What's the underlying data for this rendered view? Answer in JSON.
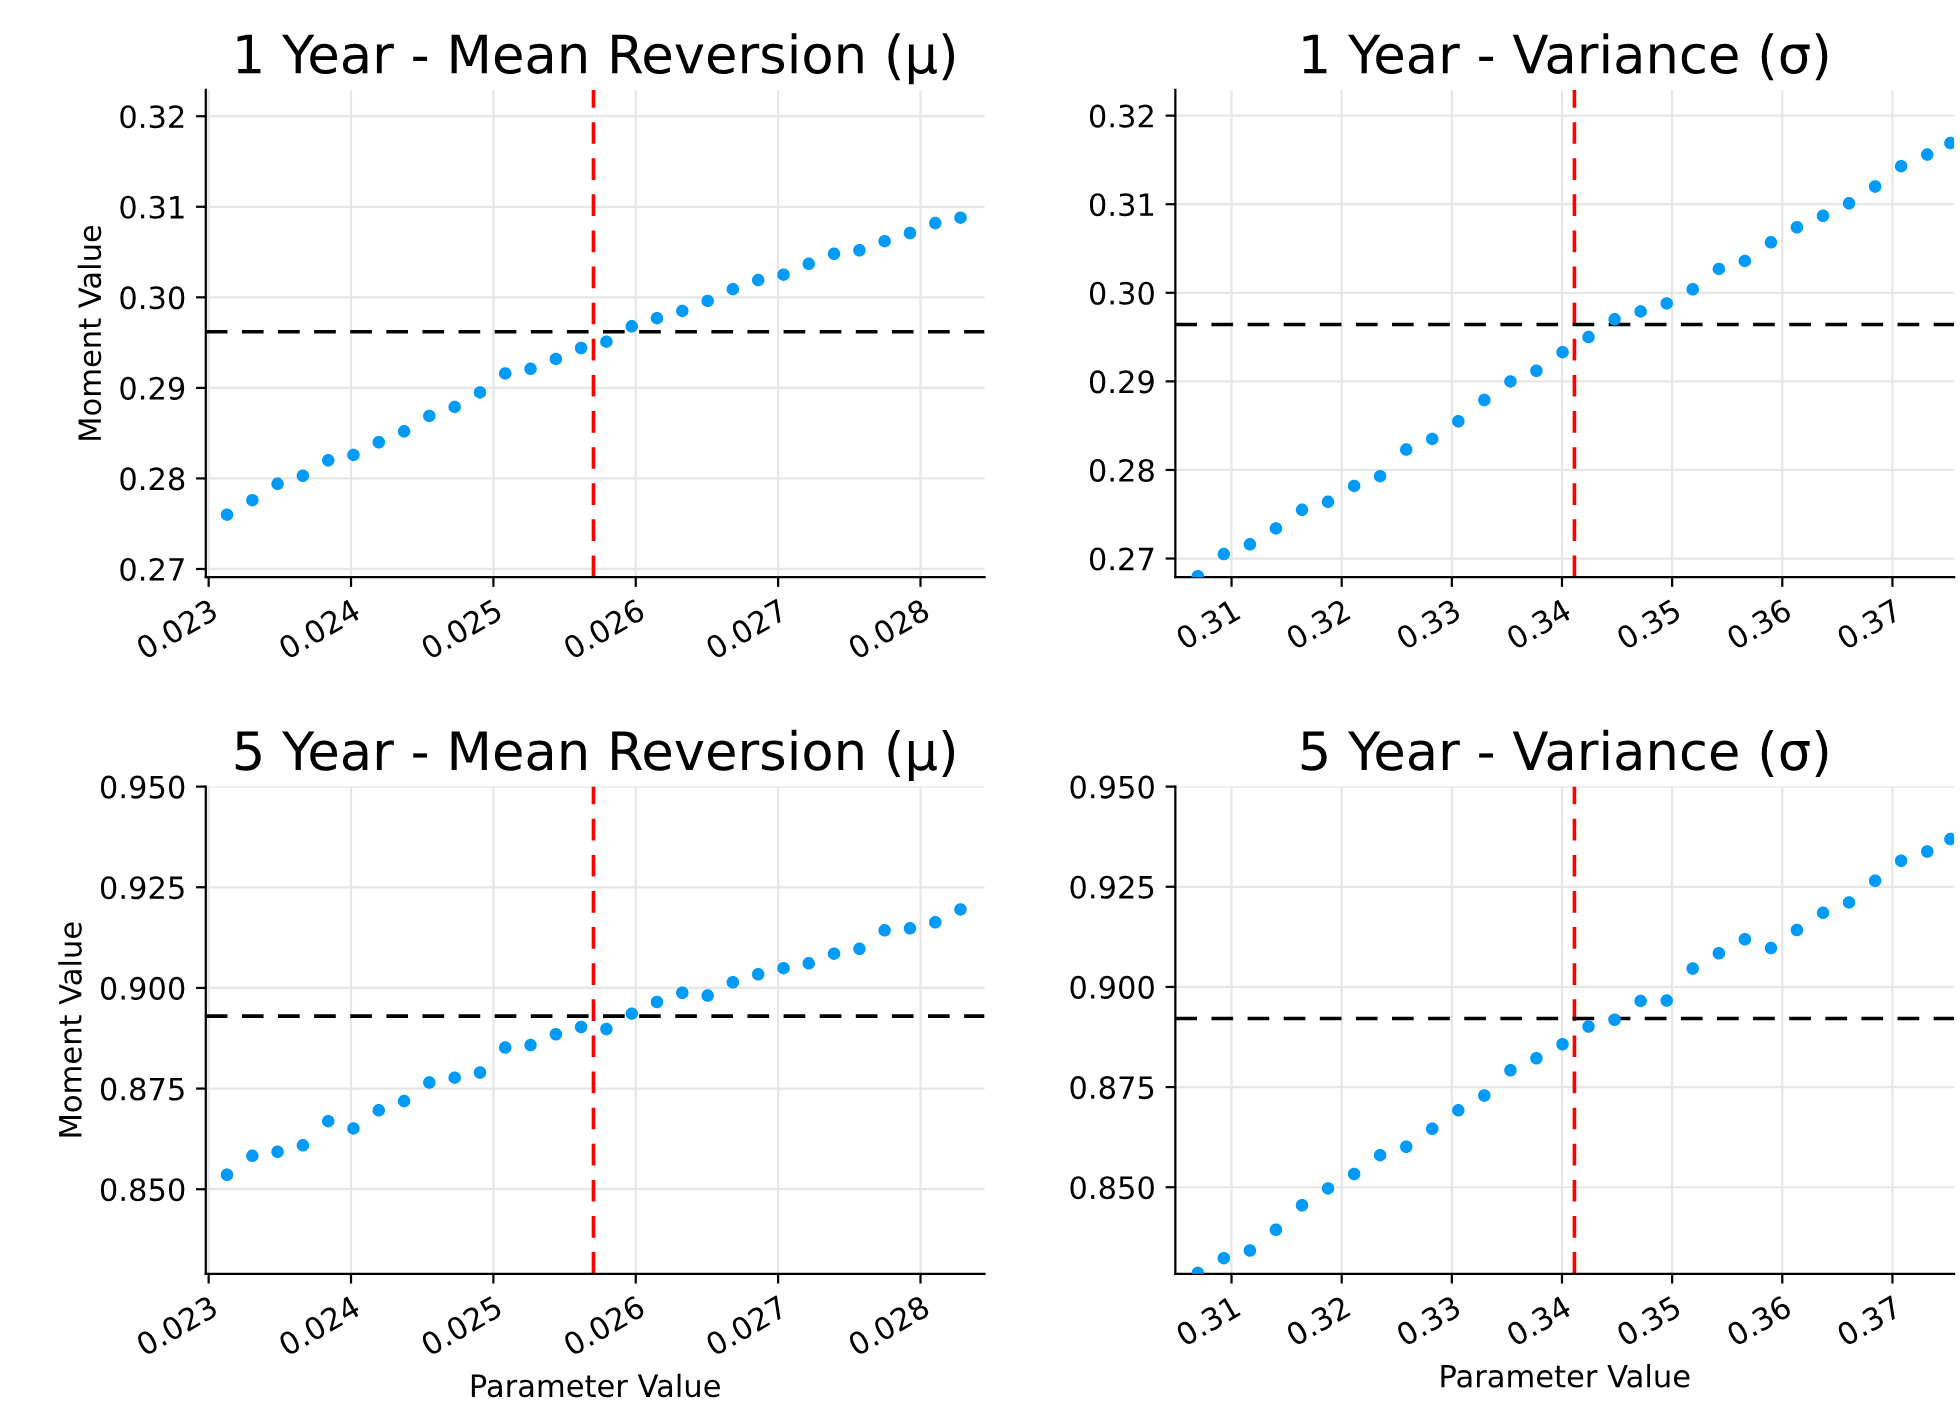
{
  "chart_data": [
    {
      "type": "scatter",
      "title": "1 Year - Mean Reversion (μ)",
      "ylabel": "Moment Value",
      "marker": "circle",
      "grid": true,
      "x": [
        0.023129,
        0.023307,
        0.023484,
        0.023662,
        0.02384,
        0.024017,
        0.024195,
        0.024373,
        0.02455,
        0.024728,
        0.024906,
        0.025083,
        0.025261,
        0.025439,
        0.025616,
        0.025794,
        0.025972,
        0.026149,
        0.026327,
        0.026505,
        0.026682,
        0.02686,
        0.027038,
        0.027215,
        0.027393,
        0.027571,
        0.027748,
        0.027926,
        0.028104,
        0.028281
      ],
      "series": [
        {
          "color": "#009af9",
          "values": [
            0.276,
            0.2776,
            0.2794,
            0.2803,
            0.282,
            0.2826,
            0.284,
            0.2852,
            0.2869,
            0.2879,
            0.2895,
            0.2916,
            0.2921,
            0.2932,
            0.2944,
            0.2951,
            0.2968,
            0.2977,
            0.2985,
            0.2996,
            0.3009,
            0.3019,
            0.3025,
            0.3037,
            0.3048,
            0.3052,
            0.3062,
            0.3071,
            0.3082,
            0.3088
          ]
        }
      ],
      "xlim": [
        0.02298,
        0.02845
      ],
      "ylim": [
        0.2691,
        0.3229
      ],
      "xticks": [
        0.023,
        0.024,
        0.025,
        0.026,
        0.027,
        0.028
      ],
      "yticks": [
        0.27,
        0.28,
        0.29,
        {
          "value": 0.3,
          "label": "0.30"
        },
        0.31,
        0.32
      ],
      "ref_lines": [
        {
          "axis": "x",
          "value": 0.025703,
          "color": "#ff0000",
          "line_style": "dashed"
        },
        {
          "axis": "y",
          "value": 0.2962,
          "color": "#000000",
          "line_style": "dashed"
        }
      ]
    },
    {
      "type": "scatter",
      "title": "1 Year - Variance (σ)",
      "marker": "circle",
      "grid": true,
      "x": [
        0.30694,
        0.3093,
        0.31167,
        0.31403,
        0.3164,
        0.31876,
        0.32113,
        0.32349,
        0.32586,
        0.32822,
        0.33059,
        0.33295,
        0.33532,
        0.33768,
        0.34005,
        0.34241,
        0.34478,
        0.34714,
        0.34951,
        0.35187,
        0.35424,
        0.3566,
        0.35897,
        0.36133,
        0.3637,
        0.36606,
        0.36843,
        0.37079,
        0.37316,
        0.37526
      ],
      "series": [
        {
          "color": "#009af9",
          "values": [
            0.268,
            0.2705,
            0.2716,
            0.2734,
            0.2755,
            0.2764,
            0.2782,
            0.2793,
            0.2823,
            0.2835,
            0.2855,
            0.2879,
            0.29,
            0.2912,
            0.2933,
            0.295,
            0.297,
            0.2979,
            0.2988,
            0.3004,
            0.3027,
            0.3036,
            0.3057,
            0.3074,
            0.3087,
            0.3101,
            0.312,
            0.3143,
            0.3156,
            0.3169
          ]
        }
      ],
      "xlim": [
        0.3049,
        0.3756
      ],
      "ylim": [
        0.2679,
        0.3229
      ],
      "xticks": [
        0.31,
        0.32,
        0.33,
        0.34,
        0.35,
        0.36,
        0.37
      ],
      "yticks": [
        0.27,
        0.28,
        0.29,
        {
          "value": 0.3,
          "label": "0.30"
        },
        0.31,
        0.32
      ],
      "ref_lines": [
        {
          "axis": "x",
          "value": 0.34113,
          "color": "#ff0000",
          "line_style": "dashed"
        },
        {
          "axis": "y",
          "value": 0.29642,
          "color": "#000000",
          "line_style": "dashed"
        }
      ]
    },
    {
      "type": "scatter",
      "title": "5 Year - Mean Reversion (μ)",
      "xlabel": "Parameter Value",
      "ylabel": "Moment Value",
      "marker": "circle",
      "grid": true,
      "x": [
        0.023129,
        0.023307,
        0.023484,
        0.023662,
        0.02384,
        0.024017,
        0.024195,
        0.024373,
        0.02455,
        0.024728,
        0.024906,
        0.025083,
        0.025261,
        0.025439,
        0.025616,
        0.025794,
        0.025972,
        0.026149,
        0.026327,
        0.026505,
        0.026682,
        0.02686,
        0.027038,
        0.027215,
        0.027393,
        0.027571,
        0.027748,
        0.027926,
        0.028104,
        0.028281
      ],
      "series": [
        {
          "color": "#009af9",
          "values": [
            0.8536,
            0.8583,
            0.8593,
            0.8609,
            0.8669,
            0.8651,
            0.8696,
            0.8719,
            0.8765,
            0.8777,
            0.879,
            0.8852,
            0.8858,
            0.8885,
            0.8903,
            0.8898,
            0.8936,
            0.8965,
            0.8988,
            0.8981,
            0.9014,
            0.9034,
            0.9049,
            0.9061,
            0.9085,
            0.9097,
            0.9143,
            0.9148,
            0.9163,
            0.9195
          ]
        }
      ],
      "xlim": [
        0.02298,
        0.02845
      ],
      "ylim": [
        0.829,
        0.95
      ],
      "xticks": [
        0.023,
        0.024,
        0.025,
        0.026,
        0.027,
        0.028
      ],
      "yticks": [
        {
          "value": 0.85,
          "label": "0.850"
        },
        {
          "value": 0.875,
          "label": "0.875"
        },
        {
          "value": 0.9,
          "label": "0.900"
        },
        {
          "value": 0.925,
          "label": "0.925"
        },
        {
          "value": 0.95,
          "label": "0.950"
        }
      ],
      "ref_lines": [
        {
          "axis": "x",
          "value": 0.025703,
          "color": "#ff0000",
          "line_style": "dashed"
        },
        {
          "axis": "y",
          "value": 0.893,
          "color": "#000000",
          "line_style": "dashed"
        }
      ]
    },
    {
      "type": "scatter",
      "title": "5 Year - Variance (σ)",
      "xlabel": "Parameter Value",
      "marker": "circle",
      "grid": true,
      "x": [
        0.30694,
        0.3093,
        0.31167,
        0.31403,
        0.3164,
        0.31876,
        0.32113,
        0.32349,
        0.32586,
        0.32822,
        0.33059,
        0.33295,
        0.33532,
        0.33768,
        0.34005,
        0.34241,
        0.34478,
        0.34714,
        0.34951,
        0.35187,
        0.35424,
        0.3566,
        0.35897,
        0.36133,
        0.3637,
        0.36606,
        0.36843,
        0.37079,
        0.37316,
        0.37526
      ],
      "series": [
        {
          "color": "#009af9",
          "values": [
            0.8286,
            0.8323,
            0.8342,
            0.8394,
            0.8455,
            0.8497,
            0.8533,
            0.858,
            0.8601,
            0.8646,
            0.8692,
            0.8729,
            0.8792,
            0.8822,
            0.8857,
            0.8901,
            0.8918,
            0.8965,
            0.8966,
            0.9046,
            0.9084,
            0.9119,
            0.9097,
            0.9142,
            0.9185,
            0.9211,
            0.9265,
            0.9315,
            0.9338,
            0.9369
          ]
        }
      ],
      "xlim": [
        0.3049,
        0.3756
      ],
      "ylim": [
        0.8284,
        0.95
      ],
      "xticks": [
        0.31,
        0.32,
        0.33,
        0.34,
        0.35,
        0.36,
        0.37
      ],
      "yticks": [
        {
          "value": 0.85,
          "label": "0.850"
        },
        {
          "value": 0.875,
          "label": "0.875"
        },
        {
          "value": 0.9,
          "label": "0.900"
        },
        {
          "value": 0.925,
          "label": "0.925"
        },
        {
          "value": 0.95,
          "label": "0.950"
        }
      ],
      "ref_lines": [
        {
          "axis": "x",
          "value": 0.34113,
          "color": "#ff0000",
          "line_style": "dashed"
        },
        {
          "axis": "y",
          "value": 0.89212,
          "color": "#000000",
          "line_style": "dashed"
        }
      ]
    }
  ]
}
